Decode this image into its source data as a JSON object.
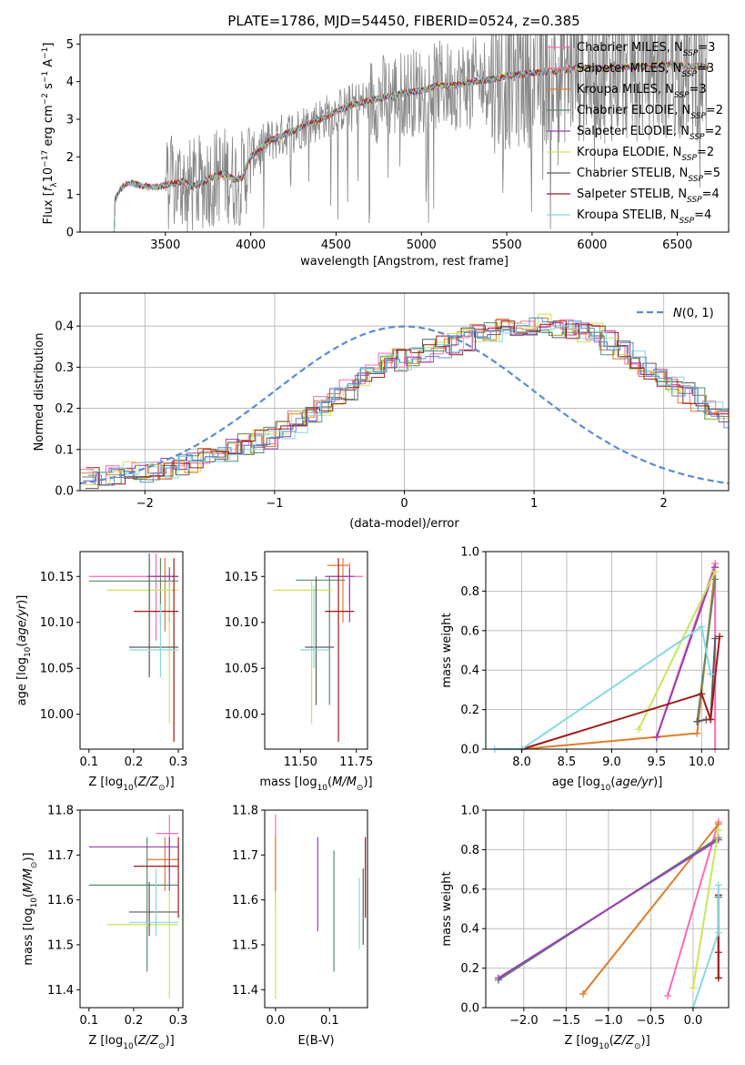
{
  "title": "PLATE=1786, MJD=54450, FIBERID=0524, z=0.385",
  "colors": {
    "Chabrier MILES": "#ff69b4",
    "Salpeter MILES": "#ff69b4",
    "Kroupa MILES": "#e07b2a",
    "Chabrier ELODIE": "#5a8a6a",
    "Salpeter ELODIE": "#9a3fb5",
    "Kroupa ELODIE": "#c8e65a",
    "Chabrier STELIB": "#5a5a5a",
    "Salpeter STELIB": "#a01818",
    "Kroupa STELIB": "#88d8e0",
    "normal_curve": "#5b8bd0",
    "data": "#888888"
  },
  "chart_data": [
    {
      "type": "line",
      "title": "PLATE=1786, MJD=54450, FIBERID=0524, z=0.385",
      "xlabel": "wavelength [Angstrom, rest frame]",
      "ylabel": "Flux [f_λ 10^-17 erg cm^-2 s^-1 A^-1]",
      "xlim": [
        3000,
        6800
      ],
      "ylim": [
        0,
        5.25
      ],
      "xticks": [
        3500,
        4000,
        4500,
        5000,
        5500,
        6000,
        6500
      ],
      "yticks": [
        0,
        1,
        2,
        3,
        4,
        5
      ],
      "legend": "top-right",
      "legend_entries": [
        "Chabrier MILES, N_SSP=3",
        "Salpeter MILES, N_SSP=3",
        "Kroupa MILES, N_SSP=3",
        "Chabrier ELODIE, N_SSP=2",
        "Salpeter ELODIE, N_SSP=2",
        "Kroupa ELODIE, N_SSP=2",
        "Chabrier STELIB, N_SSP=5",
        "Salpeter STELIB, N_SSP=4",
        "Kroupa STELIB, N_SSP=4"
      ],
      "model_x": [
        3200,
        3230,
        3260,
        3300,
        3350,
        3400,
        3450,
        3500,
        3550,
        3600,
        3650,
        3700,
        3750,
        3800,
        3850,
        3900,
        3950,
        4000,
        4100,
        4200,
        4300,
        4400,
        4500,
        4600,
        4700,
        4800,
        4900,
        5000,
        5100,
        5200,
        5300,
        5400,
        5500,
        5600,
        5700,
        5800,
        5900,
        6000,
        6100,
        6200,
        6300,
        6400,
        6500,
        6600,
        6700
      ],
      "model_y": [
        0.8,
        1.1,
        1.25,
        1.3,
        1.25,
        1.2,
        1.2,
        1.25,
        1.3,
        1.35,
        1.2,
        1.3,
        1.4,
        1.5,
        1.55,
        1.4,
        1.45,
        2.0,
        2.4,
        2.6,
        2.8,
        3.0,
        3.2,
        3.4,
        3.5,
        3.6,
        3.7,
        3.75,
        3.9,
        3.9,
        4.0,
        4.05,
        4.15,
        4.2,
        4.25,
        4.3,
        4.35,
        4.35,
        4.35,
        4.4,
        4.4,
        4.45,
        4.45,
        4.4,
        4.4
      ]
    },
    {
      "type": "bar",
      "xlabel": "(data-model)/error",
      "ylabel": "Normed distribution",
      "xlim": [
        -2.5,
        2.5
      ],
      "ylim": [
        0,
        0.48
      ],
      "xticks": [
        -2,
        -1,
        0,
        1,
        2
      ],
      "yticks": [
        0.0,
        0.1,
        0.2,
        0.3,
        0.4
      ],
      "legend": "top-right",
      "legend_entries": [
        "N(0,1)"
      ],
      "bin_edges_start": -2.5,
      "bin_width": 0.1,
      "histogram": [
        0.03,
        0.03,
        0.04,
        0.05,
        0.05,
        0.055,
        0.055,
        0.06,
        0.07,
        0.08,
        0.09,
        0.1,
        0.11,
        0.12,
        0.13,
        0.15,
        0.17,
        0.19,
        0.21,
        0.23,
        0.25,
        0.27,
        0.29,
        0.31,
        0.32,
        0.33,
        0.34,
        0.35,
        0.36,
        0.37,
        0.38,
        0.38,
        0.39,
        0.38,
        0.4,
        0.41,
        0.4,
        0.39,
        0.39,
        0.38,
        0.36,
        0.34,
        0.32,
        0.3,
        0.28,
        0.26,
        0.24,
        0.22,
        0.2,
        0.17,
        0.15,
        0.14,
        0.12,
        0.11,
        0.1,
        0.09,
        0.08,
        0.07,
        0.06,
        0.05,
        0.04,
        0.04,
        0.03,
        0.03
      ],
      "series": [
        {
          "name": "N(0,1)",
          "style": "dashed"
        }
      ]
    },
    {
      "type": "scatter",
      "xlabel": "Z [log10(Z/Z⊙)]",
      "ylabel": "age [log10(age/yr)]",
      "xlim": [
        0.08,
        0.31
      ],
      "ylim": [
        9.962,
        10.177
      ],
      "xticks": [
        0.1,
        0.2,
        0.3
      ],
      "yticks": [
        10.0,
        10.05,
        10.1,
        10.15
      ],
      "points": [
        {
          "x": 0.25,
          "y": 10.15,
          "xerr": [
            0.1,
            0.3
          ],
          "yerr": [
            10.08,
            10.175
          ],
          "color": "Chabrier MILES"
        },
        {
          "x": 0.27,
          "y": 10.15,
          "xerr": [
            0.24,
            0.3
          ],
          "yerr": [
            10.09,
            10.17
          ],
          "color": "Kroupa MILES"
        },
        {
          "x": 0.26,
          "y": 10.145,
          "xerr": [
            0.1,
            0.3
          ],
          "yerr": [
            10.1,
            10.17
          ],
          "color": "Chabrier ELODIE"
        },
        {
          "x": 0.28,
          "y": 10.15,
          "xerr": [
            0.23,
            0.3
          ],
          "yerr": [
            10.1,
            10.16
          ],
          "color": "Salpeter ELODIE"
        },
        {
          "x": 0.28,
          "y": 10.135,
          "xerr": [
            0.14,
            0.3
          ],
          "yerr": [
            9.99,
            10.145
          ],
          "color": "Kroupa ELODIE"
        },
        {
          "x": 0.235,
          "y": 10.073,
          "xerr": [
            0.19,
            0.3
          ],
          "yerr": [
            10.04,
            10.175
          ],
          "color": "Chabrier STELIB"
        },
        {
          "x": 0.29,
          "y": 10.112,
          "xerr": [
            0.2,
            0.3
          ],
          "yerr": [
            9.97,
            10.17
          ],
          "color": "Salpeter STELIB"
        },
        {
          "x": 0.26,
          "y": 10.07,
          "xerr": [
            0.19,
            0.3
          ],
          "yerr": [
            10.04,
            10.12
          ],
          "color": "Kroupa STELIB"
        }
      ]
    },
    {
      "type": "scatter",
      "xlabel": "mass [log10(M/M⊙)]",
      "ylabel": "",
      "xlim": [
        11.34,
        11.8
      ],
      "ylim": [
        9.962,
        10.177
      ],
      "xticks": [
        11.5,
        11.75
      ],
      "yticks": [
        10.0,
        10.05,
        10.1,
        10.15
      ],
      "points": [
        {
          "x": 11.72,
          "y": 10.15,
          "xerr": [
            11.64,
            11.78
          ],
          "yerr": [
            10.12,
            10.165
          ],
          "color": "Chabrier MILES"
        },
        {
          "x": 11.69,
          "y": 10.162,
          "xerr": [
            11.62,
            11.72
          ],
          "yerr": [
            10.1,
            10.17
          ],
          "color": "Kroupa MILES"
        },
        {
          "x": 11.63,
          "y": 10.146,
          "xerr": [
            11.48,
            11.7
          ],
          "yerr": [
            10.01,
            10.15
          ],
          "color": "Chabrier ELODIE"
        },
        {
          "x": 11.72,
          "y": 10.15,
          "xerr": [
            11.61,
            11.74
          ],
          "yerr": [
            10.1,
            10.16
          ],
          "color": "Salpeter ELODIE"
        },
        {
          "x": 11.55,
          "y": 10.135,
          "xerr": [
            11.38,
            11.64
          ],
          "yerr": [
            9.99,
            10.145
          ],
          "color": "Kroupa ELODIE"
        },
        {
          "x": 11.57,
          "y": 10.073,
          "xerr": [
            11.52,
            11.65
          ],
          "yerr": [
            10.01,
            10.15
          ],
          "color": "Chabrier STELIB"
        },
        {
          "x": 11.67,
          "y": 10.112,
          "xerr": [
            11.61,
            11.74
          ],
          "yerr": [
            9.97,
            10.17
          ],
          "color": "Salpeter STELIB"
        },
        {
          "x": 11.56,
          "y": 10.07,
          "xerr": [
            11.5,
            11.63
          ],
          "yerr": [
            10.05,
            10.14
          ],
          "color": "Kroupa STELIB"
        }
      ]
    },
    {
      "type": "line",
      "xlabel": "age [log10(age/yr)]",
      "ylabel": "mass weight",
      "xlim": [
        7.6,
        10.3
      ],
      "ylim": [
        0,
        1.0
      ],
      "xticks": [
        8.0,
        8.5,
        9.0,
        9.5,
        10.0
      ],
      "yticks": [
        0.0,
        0.2,
        0.4,
        0.6,
        0.8,
        1.0
      ],
      "series": [
        {
          "name": "Chabrier MILES",
          "x": [
            9.5,
            10.15,
            10.15
          ],
          "y": [
            0.06,
            0.94,
            0.0
          ]
        },
        {
          "name": "Kroupa MILES",
          "x": [
            8.0,
            9.95,
            10.15
          ],
          "y": [
            0.0,
            0.08,
            0.92
          ]
        },
        {
          "name": "Chabrier ELODIE",
          "x": [
            9.95,
            10.15
          ],
          "y": [
            0.14,
            0.86
          ]
        },
        {
          "name": "Salpeter ELODIE",
          "x": [
            9.5,
            10.15
          ],
          "y": [
            0.06,
            0.92
          ]
        },
        {
          "name": "Kroupa ELODIE",
          "x": [
            9.3,
            10.15
          ],
          "y": [
            0.1,
            0.9
          ]
        },
        {
          "name": "Chabrier STELIB",
          "x": [
            9.95,
            10.05,
            10.1,
            10.15
          ],
          "y": [
            0.14,
            0.15,
            0.15,
            0.56
          ]
        },
        {
          "name": "Salpeter STELIB",
          "x": [
            8.0,
            10.0,
            10.1,
            10.2
          ],
          "y": [
            0.0,
            0.28,
            0.15,
            0.57
          ]
        },
        {
          "name": "Kroupa STELIB",
          "x": [
            7.7,
            8.0,
            10.0,
            10.1
          ],
          "y": [
            0.0,
            0.0,
            0.62,
            0.38
          ]
        }
      ]
    },
    {
      "type": "scatter",
      "xlabel": "Z [log10(Z/Z⊙)]",
      "ylabel": "mass [log10(M/M⊙)]",
      "xlim": [
        0.08,
        0.31
      ],
      "ylim": [
        11.36,
        11.8
      ],
      "xticks": [
        0.1,
        0.2,
        0.3
      ],
      "yticks": [
        11.4,
        11.5,
        11.6,
        11.7,
        11.8
      ],
      "points": [
        {
          "x": 0.28,
          "y": 11.748,
          "xerr": [
            0.25,
            0.3
          ],
          "yerr": [
            11.66,
            11.79
          ],
          "color": "Chabrier MILES"
        },
        {
          "x": 0.27,
          "y": 11.69,
          "xerr": [
            0.23,
            0.3
          ],
          "yerr": [
            11.62,
            11.74
          ],
          "color": "Kroupa MILES"
        },
        {
          "x": 0.23,
          "y": 11.633,
          "xerr": [
            0.1,
            0.3
          ],
          "yerr": [
            11.44,
            11.74
          ],
          "color": "Chabrier ELODIE"
        },
        {
          "x": 0.28,
          "y": 11.718,
          "xerr": [
            0.1,
            0.3
          ],
          "yerr": [
            11.62,
            11.74
          ],
          "color": "Salpeter ELODIE"
        },
        {
          "x": 0.28,
          "y": 11.545,
          "xerr": [
            0.14,
            0.3
          ],
          "yerr": [
            11.38,
            11.62
          ],
          "color": "Kroupa ELODIE"
        },
        {
          "x": 0.235,
          "y": 11.573,
          "xerr": [
            0.19,
            0.3
          ],
          "yerr": [
            11.52,
            11.64
          ],
          "color": "Chabrier STELIB"
        },
        {
          "x": 0.3,
          "y": 11.675,
          "xerr": [
            0.2,
            0.3
          ],
          "yerr": [
            11.56,
            11.74
          ],
          "color": "Salpeter STELIB"
        },
        {
          "x": 0.25,
          "y": 11.55,
          "xerr": [
            0.19,
            0.3
          ],
          "yerr": [
            11.52,
            11.67
          ],
          "color": "Kroupa STELIB"
        }
      ]
    },
    {
      "type": "scatter",
      "xlabel": "E(B-V)",
      "ylabel": "",
      "xlim": [
        -0.02,
        0.17
      ],
      "ylim": [
        11.36,
        11.8
      ],
      "xticks": [
        0.0,
        0.1
      ],
      "yticks": [
        11.4,
        11.5,
        11.6,
        11.7,
        11.8
      ],
      "points": [
        {
          "x": 0.0,
          "y": 11.69,
          "yerr": [
            11.58,
            11.79
          ],
          "color": "Chabrier MILES"
        },
        {
          "x": 0.0,
          "y": 11.69,
          "yerr": [
            11.6,
            11.74
          ],
          "color": "Kroupa MILES"
        },
        {
          "x": 0.108,
          "y": 11.633,
          "yerr": [
            11.44,
            11.71
          ],
          "color": "Chabrier ELODIE"
        },
        {
          "x": 0.078,
          "y": 11.718,
          "yerr": [
            11.53,
            11.74
          ],
          "color": "Salpeter ELODIE"
        },
        {
          "x": 0.0,
          "y": 11.545,
          "yerr": [
            11.38,
            11.62
          ],
          "color": "Kroupa ELODIE"
        },
        {
          "x": 0.162,
          "y": 11.573,
          "yerr": [
            11.5,
            11.67
          ],
          "color": "Chabrier STELIB"
        },
        {
          "x": 0.166,
          "y": 11.675,
          "yerr": [
            11.56,
            11.74
          ],
          "color": "Salpeter STELIB"
        },
        {
          "x": 0.155,
          "y": 11.55,
          "yerr": [
            11.49,
            11.65
          ],
          "color": "Kroupa STELIB"
        }
      ]
    },
    {
      "type": "line",
      "xlabel": "Z [log10(Z/Z⊙)]",
      "ylabel": "mass weight",
      "xlim": [
        -2.45,
        0.42
      ],
      "ylim": [
        0,
        1.0
      ],
      "xticks": [
        -2.0,
        -1.5,
        -1.0,
        -0.5,
        0.0
      ],
      "yticks": [
        0.0,
        0.2,
        0.4,
        0.6,
        0.8,
        1.0
      ],
      "series": [
        {
          "name": "Chabrier MILES",
          "x": [
            -0.3,
            0.3
          ],
          "y": [
            0.06,
            0.94
          ]
        },
        {
          "name": "Kroupa MILES",
          "x": [
            -1.3,
            0.3
          ],
          "y": [
            0.07,
            0.93
          ]
        },
        {
          "name": "Chabrier ELODIE",
          "x": [
            -2.3,
            0.3
          ],
          "y": [
            0.14,
            0.86
          ]
        },
        {
          "name": "Salpeter ELODIE",
          "x": [
            -2.3,
            0.3
          ],
          "y": [
            0.15,
            0.85
          ]
        },
        {
          "name": "Kroupa ELODIE",
          "x": [
            0.0,
            0.3
          ],
          "y": [
            0.1,
            0.9
          ]
        },
        {
          "name": "Chabrier STELIB",
          "x": [
            0.3,
            0.3
          ],
          "y": [
            0.15,
            0.56
          ]
        },
        {
          "name": "Salpeter STELIB",
          "x": [
            0.3,
            0.3,
            0.3
          ],
          "y": [
            0.15,
            0.28,
            0.57
          ]
        },
        {
          "name": "Kroupa STELIB",
          "x": [
            0.0,
            0.3,
            0.3
          ],
          "y": [
            0.0,
            0.38,
            0.62
          ]
        }
      ]
    }
  ]
}
